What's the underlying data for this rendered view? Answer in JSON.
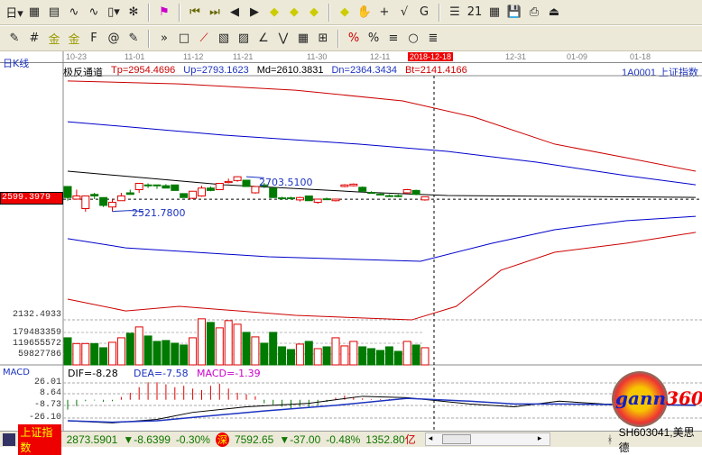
{
  "toolbar1": {
    "items": [
      "period-selector",
      "chart-type",
      "info",
      "indicator-3",
      "indicator-9",
      "candle-type",
      "custom-indicator",
      "flag",
      "first",
      "last",
      "prev",
      "next",
      "left-arrow",
      "right-arrow",
      "zoom-in",
      "zoom-out",
      "hand",
      "crosshair",
      "draw",
      "gann",
      "stock",
      "calendar",
      "calculator",
      "save",
      "print",
      "exit"
    ],
    "period_label": "日"
  },
  "toolbar2": {
    "items": [
      "pen",
      "grid",
      "gold1",
      "gold2",
      "fib",
      "spiral",
      "eraser",
      "more",
      "rect",
      "fan",
      "box",
      "gann-box",
      "angle",
      "wave",
      "grid2",
      "axis",
      "percent1",
      "percent2",
      "fib2",
      "circle",
      "lines"
    ]
  },
  "date_axis": [
    "10-23",
    "11-01",
    "11-12",
    "11-21",
    "11-30",
    "12-11",
    "2018-12-18",
    "12-31",
    "01-09",
    "01-18"
  ],
  "period": "日K线",
  "indicator": {
    "name": "极反通道",
    "tp": "Tp=2954.4696",
    "up": "Up=2793.1623",
    "md": "Md=2610.3831",
    "dn": "Dn=2364.3434",
    "bt": "Bt=2141.4166"
  },
  "security": "1A0001  上证指数",
  "price_labels": {
    "current": "2599.3979",
    "high_mark": "2703.5100",
    "low_mark": "2521.7800",
    "volume_max": "2132.4933"
  },
  "volume_labels": [
    "179483359",
    "119655572",
    "59827786"
  ],
  "macd": {
    "title": "MACD",
    "dif": "DIF=-8.28",
    "dea": "DEA=-7.58",
    "macd": "MACD=-1.39",
    "ticks": [
      "26.01",
      "8.64",
      "-8.73",
      "-26.10"
    ]
  },
  "status": {
    "sh_name": "上证指数",
    "sh_price": "2873.5901",
    "sh_change": "-8.6399",
    "sh_pct": "-0.30%",
    "sz_badge": "深",
    "sz_price": "7592.65",
    "sz_change": "-37.00",
    "sz_pct": "-0.48%",
    "amount": "1352.80",
    "amount_unit": "亿",
    "stock": "SH603041,美思德"
  },
  "logo": "gann360",
  "colors": {
    "up": "#e00000",
    "down": "#007a00",
    "channel_outer": "#cc0000",
    "channel_inner": "#0000cc",
    "mid": "#000000"
  },
  "chart_data": {
    "type": "candlestick",
    "candles": [
      [
        2680,
        2680,
        2590,
        2610
      ],
      [
        2600,
        2660,
        2600,
        2620
      ],
      [
        2540,
        2620,
        2520,
        2620
      ],
      [
        2630,
        2640,
        2600,
        2620
      ],
      [
        2610,
        2610,
        2550,
        2560
      ],
      [
        2550,
        2600,
        2521.78,
        2580
      ],
      [
        2590,
        2640,
        2590,
        2620
      ],
      [
        2640,
        2660,
        2630,
        2630
      ],
      [
        2660,
        2700,
        2640,
        2700
      ],
      [
        2690,
        2700,
        2670,
        2688
      ],
      [
        2690,
        2690,
        2665,
        2688
      ],
      [
        2685,
        2695,
        2670,
        2670
      ],
      [
        2690,
        2690,
        2655,
        2655
      ],
      [
        2635,
        2635,
        2610,
        2610
      ],
      [
        2605,
        2650,
        2600,
        2650
      ],
      [
        2620,
        2685,
        2615,
        2670
      ],
      [
        2670,
        2680,
        2650,
        2655
      ],
      [
        2660,
        2700,
        2660,
        2700
      ],
      [
        2705,
        2730,
        2700,
        2712
      ],
      [
        2718,
        2745,
        2710,
        2742
      ],
      [
        2720,
        2720,
        2680,
        2680
      ],
      [
        2640,
        2680,
        2635,
        2680
      ],
      [
        2690,
        2703.51,
        2670,
        2688
      ],
      [
        2670,
        2670,
        2610,
        2610
      ],
      [
        2608,
        2615,
        2595,
        2605
      ],
      [
        2608,
        2615,
        2598,
        2605
      ],
      [
        2595,
        2615,
        2585,
        2610
      ],
      [
        2620,
        2620,
        2590,
        2590
      ],
      [
        2580,
        2600,
        2570,
        2600
      ],
      [
        2602,
        2610,
        2595,
        2600
      ],
      [
        2590,
        2600,
        2585,
        2600
      ],
      [
        2680,
        2695,
        2675,
        2690
      ],
      [
        2685,
        2700,
        2680,
        2695
      ],
      [
        2675,
        2680,
        2645,
        2650
      ],
      [
        2642,
        2650,
        2635,
        2640
      ],
      [
        2632,
        2640,
        2625,
        2630
      ],
      [
        2622,
        2630,
        2615,
        2620
      ],
      [
        2622,
        2630,
        2612,
        2620
      ],
      [
        2640,
        2665,
        2635,
        2660
      ],
      [
        2655,
        2660,
        2625,
        2630
      ],
      [
        2595,
        2615,
        2590,
        2615
      ]
    ],
    "volumes": [
      150,
      118,
      118,
      118,
      95,
      125,
      150,
      175,
      210,
      160,
      130,
      135,
      120,
      110,
      150,
      255,
      235,
      205,
      245,
      225,
      180,
      155,
      120,
      180,
      100,
      85,
      115,
      130,
      90,
      100,
      150,
      105,
      130,
      100,
      90,
      80,
      100,
      75,
      130,
      110,
      95
    ],
    "volume_unit": "million",
    "channel": {
      "tp": [
        [
          0,
          3349
        ],
        [
          12.5,
          3331
        ],
        [
          25.5,
          3291
        ],
        [
          37.5,
          3223
        ],
        [
          45.5,
          3120
        ],
        [
          54.5,
          2949
        ],
        [
          62.5,
          2863
        ],
        [
          70.3,
          2777
        ]
      ],
      "up": [
        [
          0,
          3091
        ],
        [
          17.5,
          3006
        ],
        [
          32.5,
          2949
        ],
        [
          42.5,
          2903
        ],
        [
          52.5,
          2834
        ],
        [
          62.5,
          2749
        ],
        [
          70.3,
          2691
        ]
      ],
      "md": [
        [
          0,
          2777
        ],
        [
          17.5,
          2691
        ],
        [
          32.5,
          2646
        ],
        [
          42.5,
          2623
        ],
        [
          70.3,
          2611
        ]
      ],
      "dn": [
        [
          0,
          2349
        ],
        [
          6.5,
          2291
        ],
        [
          22.5,
          2234
        ],
        [
          39.5,
          2206
        ],
        [
          47.5,
          2320
        ],
        [
          54.5,
          2406
        ],
        [
          62.5,
          2463
        ],
        [
          70.3,
          2491
        ]
      ],
      "bt": [
        [
          0,
          1966
        ],
        [
          6.5,
          1891
        ],
        [
          12.5,
          1920
        ],
        [
          25.5,
          1863
        ],
        [
          38.5,
          1834
        ],
        [
          43.5,
          1920
        ],
        [
          48.5,
          2149
        ],
        [
          54.5,
          2263
        ],
        [
          62.5,
          2320
        ],
        [
          70.3,
          2389
        ]
      ]
    },
    "current_price": 2599.3979,
    "macd_hist": [
      -14,
      -9,
      -2,
      -1,
      -3,
      -2,
      4,
      10,
      18,
      25,
      25,
      22,
      18,
      20,
      16,
      14,
      20,
      23,
      16,
      10,
      8,
      5,
      -5,
      -7,
      -10,
      -12,
      -10,
      -10,
      -8,
      -3,
      3,
      6,
      4,
      2,
      1,
      1,
      1,
      1,
      0,
      0,
      0
    ],
    "dif": [
      [
        0,
        -30
      ],
      [
        5,
        -33
      ],
      [
        10,
        -28
      ],
      [
        14,
        -18
      ],
      [
        20,
        -10
      ],
      [
        27,
        -5
      ],
      [
        33,
        5
      ],
      [
        38,
        3
      ],
      [
        45,
        -6
      ],
      [
        50,
        -10
      ],
      [
        55,
        -2
      ],
      [
        60,
        -6
      ],
      [
        70.3,
        -8.28
      ]
    ],
    "dea": [
      [
        0,
        -30
      ],
      [
        5,
        -32
      ],
      [
        10,
        -30
      ],
      [
        15,
        -24
      ],
      [
        22,
        -16
      ],
      [
        30,
        -8
      ],
      [
        38,
        2
      ],
      [
        45,
        -2
      ],
      [
        50,
        -6
      ],
      [
        55,
        -6
      ],
      [
        62,
        -7
      ],
      [
        70.3,
        -7.58
      ]
    ]
  }
}
